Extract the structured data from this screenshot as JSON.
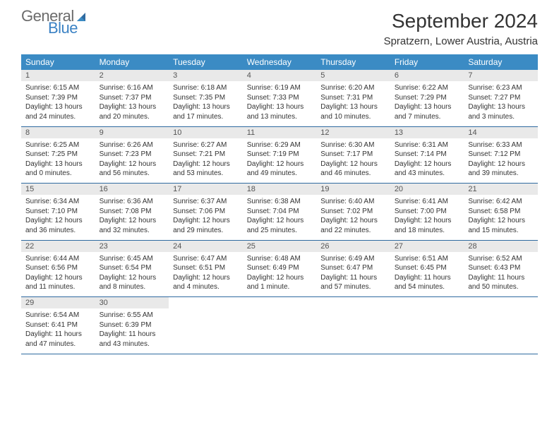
{
  "logo": {
    "text1": "General",
    "text2": "Blue"
  },
  "title": "September 2024",
  "location": "Spratzern, Lower Austria, Austria",
  "colors": {
    "header_bg": "#3b8bc4",
    "header_text": "#ffffff",
    "daynum_bg": "#e9e9e9",
    "daynum_text": "#555555",
    "separator": "#2f6aa0",
    "body_text": "#333333",
    "logo_gray": "#6b6b6b",
    "logo_blue": "#3b82c4"
  },
  "day_headers": [
    "Sunday",
    "Monday",
    "Tuesday",
    "Wednesday",
    "Thursday",
    "Friday",
    "Saturday"
  ],
  "weeks": [
    [
      {
        "n": "1",
        "sr": "Sunrise: 6:15 AM",
        "ss": "Sunset: 7:39 PM",
        "d1": "Daylight: 13 hours",
        "d2": "and 24 minutes."
      },
      {
        "n": "2",
        "sr": "Sunrise: 6:16 AM",
        "ss": "Sunset: 7:37 PM",
        "d1": "Daylight: 13 hours",
        "d2": "and 20 minutes."
      },
      {
        "n": "3",
        "sr": "Sunrise: 6:18 AM",
        "ss": "Sunset: 7:35 PM",
        "d1": "Daylight: 13 hours",
        "d2": "and 17 minutes."
      },
      {
        "n": "4",
        "sr": "Sunrise: 6:19 AM",
        "ss": "Sunset: 7:33 PM",
        "d1": "Daylight: 13 hours",
        "d2": "and 13 minutes."
      },
      {
        "n": "5",
        "sr": "Sunrise: 6:20 AM",
        "ss": "Sunset: 7:31 PM",
        "d1": "Daylight: 13 hours",
        "d2": "and 10 minutes."
      },
      {
        "n": "6",
        "sr": "Sunrise: 6:22 AM",
        "ss": "Sunset: 7:29 PM",
        "d1": "Daylight: 13 hours",
        "d2": "and 7 minutes."
      },
      {
        "n": "7",
        "sr": "Sunrise: 6:23 AM",
        "ss": "Sunset: 7:27 PM",
        "d1": "Daylight: 13 hours",
        "d2": "and 3 minutes."
      }
    ],
    [
      {
        "n": "8",
        "sr": "Sunrise: 6:25 AM",
        "ss": "Sunset: 7:25 PM",
        "d1": "Daylight: 13 hours",
        "d2": "and 0 minutes."
      },
      {
        "n": "9",
        "sr": "Sunrise: 6:26 AM",
        "ss": "Sunset: 7:23 PM",
        "d1": "Daylight: 12 hours",
        "d2": "and 56 minutes."
      },
      {
        "n": "10",
        "sr": "Sunrise: 6:27 AM",
        "ss": "Sunset: 7:21 PM",
        "d1": "Daylight: 12 hours",
        "d2": "and 53 minutes."
      },
      {
        "n": "11",
        "sr": "Sunrise: 6:29 AM",
        "ss": "Sunset: 7:19 PM",
        "d1": "Daylight: 12 hours",
        "d2": "and 49 minutes."
      },
      {
        "n": "12",
        "sr": "Sunrise: 6:30 AM",
        "ss": "Sunset: 7:17 PM",
        "d1": "Daylight: 12 hours",
        "d2": "and 46 minutes."
      },
      {
        "n": "13",
        "sr": "Sunrise: 6:31 AM",
        "ss": "Sunset: 7:14 PM",
        "d1": "Daylight: 12 hours",
        "d2": "and 43 minutes."
      },
      {
        "n": "14",
        "sr": "Sunrise: 6:33 AM",
        "ss": "Sunset: 7:12 PM",
        "d1": "Daylight: 12 hours",
        "d2": "and 39 minutes."
      }
    ],
    [
      {
        "n": "15",
        "sr": "Sunrise: 6:34 AM",
        "ss": "Sunset: 7:10 PM",
        "d1": "Daylight: 12 hours",
        "d2": "and 36 minutes."
      },
      {
        "n": "16",
        "sr": "Sunrise: 6:36 AM",
        "ss": "Sunset: 7:08 PM",
        "d1": "Daylight: 12 hours",
        "d2": "and 32 minutes."
      },
      {
        "n": "17",
        "sr": "Sunrise: 6:37 AM",
        "ss": "Sunset: 7:06 PM",
        "d1": "Daylight: 12 hours",
        "d2": "and 29 minutes."
      },
      {
        "n": "18",
        "sr": "Sunrise: 6:38 AM",
        "ss": "Sunset: 7:04 PM",
        "d1": "Daylight: 12 hours",
        "d2": "and 25 minutes."
      },
      {
        "n": "19",
        "sr": "Sunrise: 6:40 AM",
        "ss": "Sunset: 7:02 PM",
        "d1": "Daylight: 12 hours",
        "d2": "and 22 minutes."
      },
      {
        "n": "20",
        "sr": "Sunrise: 6:41 AM",
        "ss": "Sunset: 7:00 PM",
        "d1": "Daylight: 12 hours",
        "d2": "and 18 minutes."
      },
      {
        "n": "21",
        "sr": "Sunrise: 6:42 AM",
        "ss": "Sunset: 6:58 PM",
        "d1": "Daylight: 12 hours",
        "d2": "and 15 minutes."
      }
    ],
    [
      {
        "n": "22",
        "sr": "Sunrise: 6:44 AM",
        "ss": "Sunset: 6:56 PM",
        "d1": "Daylight: 12 hours",
        "d2": "and 11 minutes."
      },
      {
        "n": "23",
        "sr": "Sunrise: 6:45 AM",
        "ss": "Sunset: 6:54 PM",
        "d1": "Daylight: 12 hours",
        "d2": "and 8 minutes."
      },
      {
        "n": "24",
        "sr": "Sunrise: 6:47 AM",
        "ss": "Sunset: 6:51 PM",
        "d1": "Daylight: 12 hours",
        "d2": "and 4 minutes."
      },
      {
        "n": "25",
        "sr": "Sunrise: 6:48 AM",
        "ss": "Sunset: 6:49 PM",
        "d1": "Daylight: 12 hours",
        "d2": "and 1 minute."
      },
      {
        "n": "26",
        "sr": "Sunrise: 6:49 AM",
        "ss": "Sunset: 6:47 PM",
        "d1": "Daylight: 11 hours",
        "d2": "and 57 minutes."
      },
      {
        "n": "27",
        "sr": "Sunrise: 6:51 AM",
        "ss": "Sunset: 6:45 PM",
        "d1": "Daylight: 11 hours",
        "d2": "and 54 minutes."
      },
      {
        "n": "28",
        "sr": "Sunrise: 6:52 AM",
        "ss": "Sunset: 6:43 PM",
        "d1": "Daylight: 11 hours",
        "d2": "and 50 minutes."
      }
    ],
    [
      {
        "n": "29",
        "sr": "Sunrise: 6:54 AM",
        "ss": "Sunset: 6:41 PM",
        "d1": "Daylight: 11 hours",
        "d2": "and 47 minutes."
      },
      {
        "n": "30",
        "sr": "Sunrise: 6:55 AM",
        "ss": "Sunset: 6:39 PM",
        "d1": "Daylight: 11 hours",
        "d2": "and 43 minutes."
      },
      null,
      null,
      null,
      null,
      null
    ]
  ]
}
